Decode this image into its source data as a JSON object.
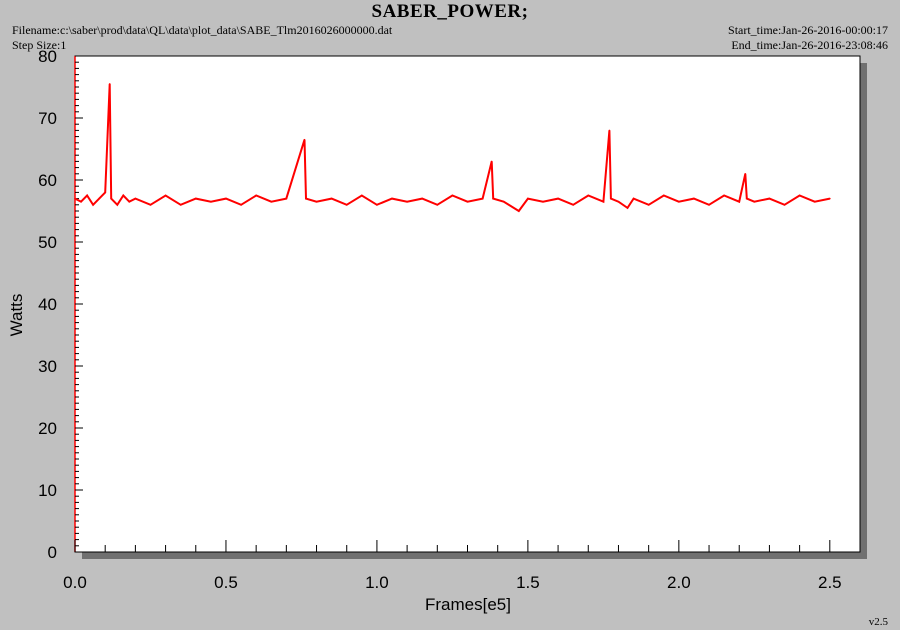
{
  "header": {
    "title": "SABER_POWER;",
    "filename": "Filename:c:\\saber\\prod\\data\\QL\\data\\plot_data\\SABE_Tlm2016026000000.dat",
    "step_size": "Step Size:1",
    "start_time": "Start_time:Jan-26-2016-00:00:17",
    "end_time": "End_time:Jan-26-2016-23:08:46",
    "version": "v2.5"
  },
  "chart_data": {
    "type": "line",
    "title": "SABER_POWER;",
    "xlabel": "Frames[e5]",
    "ylabel": "Watts",
    "xlim": [
      0,
      2.6
    ],
    "ylim": [
      0,
      80
    ],
    "x_ticks": [
      "0.0",
      "0.5",
      "1.0",
      "1.5",
      "2.0",
      "2.5"
    ],
    "y_ticks": [
      "0",
      "10",
      "20",
      "30",
      "40",
      "50",
      "60",
      "70",
      "80"
    ],
    "series_color": "#ff0000",
    "grid": false,
    "series": [
      {
        "x": [
          0.0,
          0.02,
          0.04,
          0.06,
          0.08,
          0.1,
          0.115,
          0.12,
          0.14,
          0.16,
          0.18,
          0.2,
          0.25,
          0.3,
          0.35,
          0.4,
          0.45,
          0.5,
          0.55,
          0.6,
          0.65,
          0.7,
          0.76,
          0.765,
          0.8,
          0.85,
          0.9,
          0.95,
          1.0,
          1.05,
          1.1,
          1.15,
          1.2,
          1.25,
          1.3,
          1.35,
          1.38,
          1.385,
          1.42,
          1.47,
          1.5,
          1.55,
          1.6,
          1.65,
          1.7,
          1.75,
          1.77,
          1.775,
          1.8,
          1.83,
          1.85,
          1.9,
          1.95,
          2.0,
          2.05,
          2.1,
          2.15,
          2.2,
          2.22,
          2.225,
          2.25,
          2.3,
          2.35,
          2.4,
          2.45,
          2.5
        ],
        "y": [
          57,
          56.5,
          57.5,
          56,
          57,
          58,
          75.5,
          57,
          56,
          57.5,
          56.5,
          57,
          56,
          57.5,
          56,
          57,
          56.5,
          57,
          56,
          57.5,
          56.5,
          57,
          66.5,
          57,
          56.5,
          57,
          56,
          57.5,
          56,
          57,
          56.5,
          57,
          56,
          57.5,
          56.5,
          57,
          63,
          57,
          56.5,
          55,
          57,
          56.5,
          57,
          56,
          57.5,
          56.5,
          68,
          57,
          56.5,
          55.5,
          57,
          56,
          57.5,
          56.5,
          57,
          56,
          57.5,
          56.5,
          61,
          57,
          56.5,
          57,
          56,
          57.5,
          56.5,
          57
        ]
      }
    ]
  }
}
